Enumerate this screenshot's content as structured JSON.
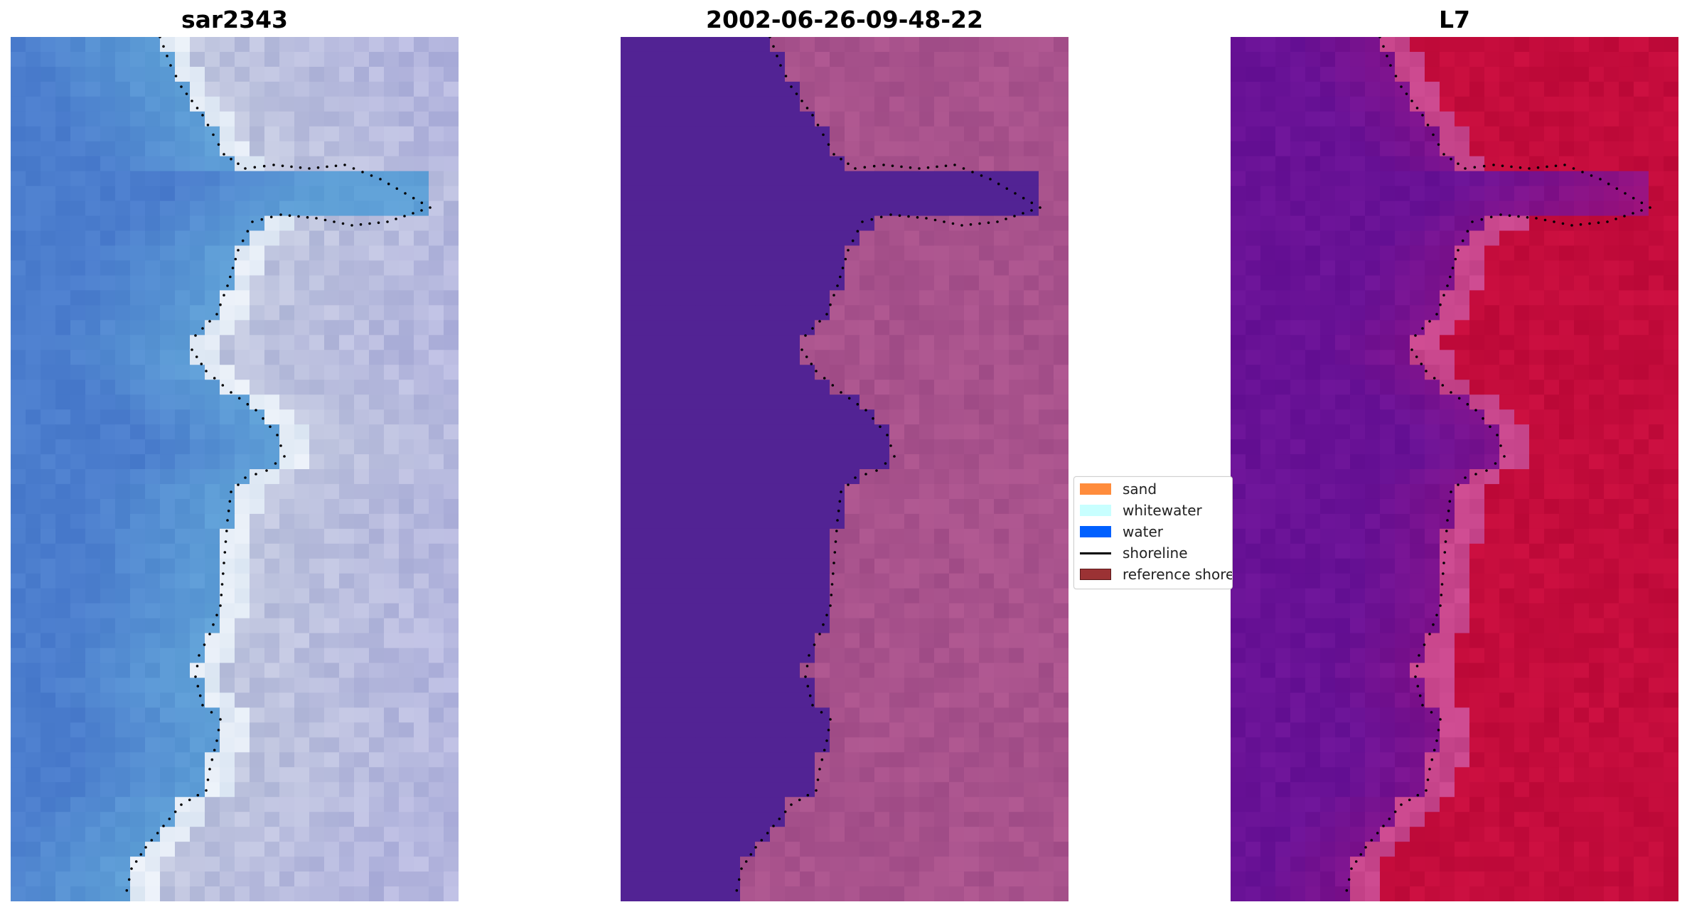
{
  "panels": [
    {
      "id": "rgb",
      "title": "sar2343"
    },
    {
      "id": "classified",
      "title": "2002-06-26-09-48-22"
    },
    {
      "id": "index",
      "title": "L7"
    }
  ],
  "colors": {
    "sand": "#ff8c3c",
    "whitewater": "#c8ffff",
    "water": "#0060ff",
    "shoreline": "#000000",
    "reference_shoreline": "#9b3234"
  },
  "legend": {
    "items": [
      {
        "label": "sand",
        "kind": "swatch",
        "color": "#ff8c3c"
      },
      {
        "label": "whitewater",
        "kind": "swatch",
        "color": "#c8ffff"
      },
      {
        "label": "water",
        "kind": "swatch",
        "color": "#0060ff"
      },
      {
        "label": "shoreline",
        "kind": "line",
        "color": "#000000"
      },
      {
        "label": "reference shoreline",
        "kind": "swatch",
        "color": "#9b3234"
      }
    ]
  }
}
